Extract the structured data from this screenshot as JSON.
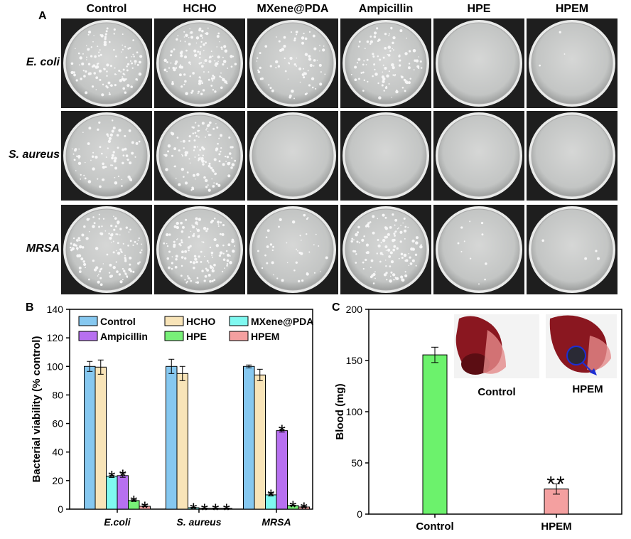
{
  "panel_a": {
    "letter": "A",
    "columns": [
      "Control",
      "HCHO",
      "MXene@PDA",
      "Ampicillin",
      "HPE",
      "HPEM"
    ],
    "rows": [
      "E. coli",
      "S. aureus",
      "MRSA"
    ],
    "colony_density": [
      [
        0.9,
        1.0,
        0.55,
        0.75,
        0.0,
        0.02
      ],
      [
        0.6,
        0.9,
        0.0,
        0.0,
        0.0,
        0.0
      ],
      [
        0.9,
        0.95,
        0.3,
        0.9,
        0.08,
        0.03
      ]
    ]
  },
  "chart_data": [
    {
      "type": "bar",
      "panel": "B",
      "categories": [
        "E.coli",
        "S. aureus",
        "MRSA"
      ],
      "ylabel": "Bacterial viability (% control)",
      "xlabel": "",
      "ylim": [
        0,
        140
      ],
      "yticks": [
        0,
        20,
        40,
        60,
        80,
        100,
        120,
        140
      ],
      "legend_position": "top",
      "series": [
        {
          "name": "Control",
          "color": "#86c8f0",
          "values": [
            100,
            100,
            100
          ],
          "errors": [
            3.5,
            5,
            1
          ]
        },
        {
          "name": "HCHO",
          "color": "#f8e4b8",
          "values": [
            99.5,
            95,
            94
          ],
          "errors": [
            5,
            5,
            4
          ]
        },
        {
          "name": "MXene@PDA",
          "color": "#7ff8f0",
          "values": [
            23,
            1,
            10
          ],
          "errors": [
            0.8,
            0.3,
            0.8
          ]
        },
        {
          "name": "Ampicillin",
          "color": "#b770f0",
          "values": [
            23.5,
            0.5,
            55
          ],
          "errors": [
            1.2,
            0.3,
            1
          ]
        },
        {
          "name": "HPE",
          "color": "#78f078",
          "values": [
            6,
            0.5,
            2.5
          ],
          "errors": [
            0.6,
            0.3,
            0.3
          ]
        },
        {
          "name": "HPEM",
          "color": "#f4a0a0",
          "values": [
            2,
            0.5,
            1.5
          ],
          "errors": [
            0.3,
            0.3,
            0.3
          ]
        }
      ],
      "significance": [
        [
          "",
          "",
          "*",
          "*",
          "*",
          "*"
        ],
        [
          "",
          "",
          "*",
          "*",
          "*",
          "*"
        ],
        [
          "",
          "",
          "*",
          "*",
          "*",
          "*"
        ]
      ]
    },
    {
      "type": "bar",
      "panel": "C",
      "categories": [
        "Control",
        "HPEM"
      ],
      "ylabel": "Blood (mg)",
      "xlabel": "",
      "ylim": [
        0,
        200
      ],
      "yticks": [
        0,
        50,
        100,
        150,
        200
      ],
      "values": [
        155.5,
        24.5
      ],
      "errors": [
        7.5,
        5
      ],
      "colors": [
        "#6cf26c",
        "#f4a0a0"
      ],
      "significance": [
        "",
        "**"
      ],
      "inset_labels": [
        "Control",
        "HPEM"
      ]
    }
  ]
}
